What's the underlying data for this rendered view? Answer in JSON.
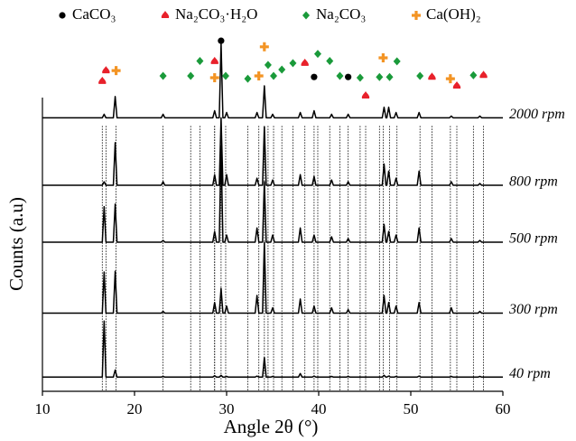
{
  "chart_data": {
    "type": "line",
    "xlabel": "Angle 2θ (°)",
    "ylabel": "Counts (a.u)",
    "xlim": [
      10,
      60
    ],
    "xticks": [
      10,
      20,
      30,
      40,
      50,
      60
    ],
    "ylim": [
      0,
      100
    ],
    "x": [
      10,
      16.5,
      16.7,
      16.9,
      17.7,
      17.9,
      18.1,
      22.9,
      23.1,
      23.3,
      28.5,
      28.7,
      28.9,
      29.2,
      29.4,
      29.6,
      29.8,
      30.0,
      30.2,
      33.1,
      33.3,
      33.5,
      33.9,
      34.1,
      34.3,
      34.8,
      35.0,
      35.2,
      37.8,
      38.0,
      38.2,
      39.3,
      39.5,
      39.7,
      41.2,
      41.4,
      41.6,
      43.0,
      43.2,
      43.4,
      46.9,
      47.1,
      47.3,
      47.4,
      47.6,
      47.8,
      48.2,
      48.4,
      48.6,
      50.7,
      50.9,
      51.1,
      54.2,
      54.4,
      54.6,
      57.3,
      57.5,
      57.7,
      60
    ],
    "series": [
      {
        "name": "2000 rpm",
        "color": "#000000",
        "values": [
          77,
          77,
          78,
          77,
          77,
          83,
          77,
          77,
          78,
          77,
          77,
          79,
          77,
          77,
          98,
          77,
          77,
          78.5,
          77,
          77,
          78.5,
          77,
          77,
          86,
          77,
          77,
          78,
          77,
          77,
          78.5,
          77,
          77,
          79,
          77,
          77,
          78,
          77,
          77,
          78,
          77,
          77,
          80,
          77,
          77,
          80,
          77,
          77,
          78.5,
          77,
          77,
          78.5,
          77,
          77,
          77.5,
          77,
          77,
          77.5,
          77,
          77
        ]
      },
      {
        "name": "800 rpm",
        "color": "#000000",
        "values": [
          58,
          58,
          59,
          58,
          58,
          70,
          58,
          58,
          59,
          58,
          58,
          61,
          58,
          58,
          77,
          58,
          58,
          61,
          58,
          58,
          60,
          58,
          58,
          74.5,
          58,
          58,
          59.5,
          58,
          58,
          61,
          58,
          58,
          60.5,
          58,
          58,
          59.5,
          58,
          58,
          59,
          58,
          58,
          64,
          58,
          58,
          62,
          58,
          58,
          60,
          58,
          58,
          62,
          58,
          58,
          59,
          58,
          58,
          58.5,
          58,
          58
        ]
      },
      {
        "name": "500 rpm",
        "color": "#000000",
        "values": [
          42,
          42,
          52,
          42,
          42,
          52.7,
          42,
          42,
          42.5,
          42,
          42,
          45,
          42,
          42,
          69,
          42,
          42,
          44,
          42,
          42,
          46,
          42,
          42,
          59,
          42,
          42,
          44,
          42,
          42,
          46,
          42,
          42,
          44,
          42,
          42,
          43.5,
          42,
          42,
          43,
          42,
          42,
          47,
          42,
          42,
          45,
          42,
          42,
          44,
          42,
          42,
          46,
          42,
          42,
          43,
          42,
          42,
          42.5,
          42,
          42
        ]
      },
      {
        "name": "300 rpm",
        "color": "#000000",
        "values": [
          22,
          22,
          33.6,
          22,
          22,
          33.8,
          22,
          22,
          22.5,
          22,
          22,
          25,
          22,
          22,
          29,
          22,
          22,
          24,
          22,
          22,
          27,
          22,
          22,
          42,
          22,
          22,
          23.5,
          22,
          22,
          26,
          22,
          22,
          24,
          22,
          22,
          23.5,
          22,
          22,
          23,
          22,
          22,
          27,
          22,
          22,
          25,
          22,
          22,
          24,
          22,
          22,
          25,
          22,
          22,
          23.5,
          22,
          22,
          22.5,
          22,
          22
        ]
      },
      {
        "name": "40 rpm",
        "color": "#000000",
        "values": [
          4,
          4,
          19.8,
          4,
          4,
          6,
          4,
          4,
          4.2,
          4,
          4,
          4.4,
          4,
          4,
          4.5,
          4,
          4,
          4.2,
          4,
          4,
          4.3,
          4,
          4,
          9.5,
          4,
          4,
          4.2,
          4,
          4,
          5,
          4,
          4,
          4.3,
          4,
          4,
          4.2,
          4,
          4,
          4.2,
          4,
          4,
          4.5,
          4,
          4,
          4.3,
          4,
          4,
          4.2,
          4,
          4,
          4.3,
          4,
          4,
          4.2,
          4,
          4,
          4.2,
          4,
          4
        ]
      }
    ],
    "phases": [
      {
        "name": "CaCO₃",
        "color": "#000000",
        "shape": "circle"
      },
      {
        "name": "Na₂CO₃·H₂O",
        "color": "#e8212b",
        "shape": "spade"
      },
      {
        "name": "Na₂CO₃",
        "color": "#1a9a3a",
        "shape": "diamond"
      },
      {
        "name": "Ca(OH)₂",
        "color": "#f39424",
        "shape": "cross"
      }
    ],
    "markers": [
      {
        "x": 29.4,
        "y": 98.7,
        "phase": 0
      },
      {
        "x": 39.5,
        "y": 88.5,
        "phase": 0
      },
      {
        "x": 43.2,
        "y": 88.5,
        "phase": 0
      },
      {
        "x": 16.5,
        "y": 87.3,
        "phase": 1
      },
      {
        "x": 16.9,
        "y": 90.3,
        "phase": 1
      },
      {
        "x": 28.7,
        "y": 92.9,
        "phase": 1
      },
      {
        "x": 38.5,
        "y": 92.4,
        "phase": 1
      },
      {
        "x": 45.1,
        "y": 83.2,
        "phase": 1
      },
      {
        "x": 52.3,
        "y": 88.5,
        "phase": 1
      },
      {
        "x": 55.0,
        "y": 86,
        "phase": 1
      },
      {
        "x": 57.9,
        "y": 89,
        "phase": 1
      },
      {
        "x": 23.1,
        "y": 88.8,
        "phase": 2
      },
      {
        "x": 26.1,
        "y": 88.8,
        "phase": 2
      },
      {
        "x": 27.1,
        "y": 93,
        "phase": 2
      },
      {
        "x": 29.9,
        "y": 88.8,
        "phase": 2
      },
      {
        "x": 32.3,
        "y": 88,
        "phase": 2
      },
      {
        "x": 34.5,
        "y": 91.9,
        "phase": 2
      },
      {
        "x": 35.1,
        "y": 88.8,
        "phase": 2
      },
      {
        "x": 36.0,
        "y": 90.6,
        "phase": 2
      },
      {
        "x": 37.2,
        "y": 92.4,
        "phase": 2
      },
      {
        "x": 39.9,
        "y": 95,
        "phase": 2
      },
      {
        "x": 41.2,
        "y": 93,
        "phase": 2
      },
      {
        "x": 42.3,
        "y": 88.8,
        "phase": 2
      },
      {
        "x": 44.5,
        "y": 88.3,
        "phase": 2
      },
      {
        "x": 46.6,
        "y": 88.5,
        "phase": 2
      },
      {
        "x": 47.7,
        "y": 88.5,
        "phase": 2
      },
      {
        "x": 48.5,
        "y": 92.9,
        "phase": 2
      },
      {
        "x": 51.0,
        "y": 88.8,
        "phase": 2
      },
      {
        "x": 56.8,
        "y": 89,
        "phase": 2
      },
      {
        "x": 18.0,
        "y": 90.3,
        "phase": 3
      },
      {
        "x": 28.7,
        "y": 88.3,
        "phase": 3
      },
      {
        "x": 33.5,
        "y": 88.8,
        "phase": 3
      },
      {
        "x": 34.1,
        "y": 97,
        "phase": 3
      },
      {
        "x": 47.0,
        "y": 93.9,
        "phase": 3
      },
      {
        "x": 54.3,
        "y": 88,
        "phase": 3
      }
    ]
  }
}
